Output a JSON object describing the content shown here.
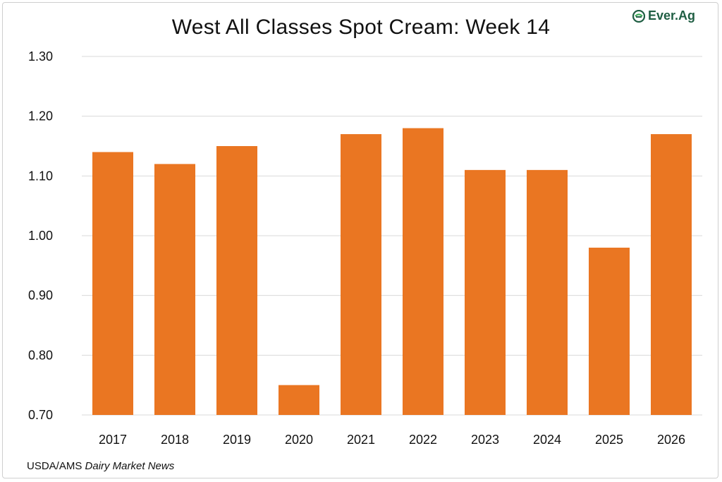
{
  "logo": {
    "text": "Ever.Ag",
    "icon": "ever-ag-leaf-icon",
    "color": "#1f5e43"
  },
  "source": {
    "prefix": "USDA/AMS ",
    "italic": "Dairy Market News"
  },
  "chart_data": {
    "type": "bar",
    "title": "West All Classes Spot Cream: Week 14",
    "xlabel": "",
    "ylabel": "",
    "categories": [
      "2017",
      "2018",
      "2019",
      "2020",
      "2021",
      "2022",
      "2023",
      "2024",
      "2025",
      "2026"
    ],
    "values": [
      1.14,
      1.12,
      1.15,
      0.75,
      1.17,
      1.18,
      1.11,
      1.11,
      0.98,
      1.17
    ],
    "ylim": [
      0.7,
      1.3
    ],
    "yticks": [
      "0.70",
      "0.80",
      "0.90",
      "1.00",
      "1.10",
      "1.20",
      "1.30"
    ],
    "grid": true,
    "legend": "none",
    "bar_color": "#ea7622",
    "grid_color": "#d9d9d9"
  }
}
